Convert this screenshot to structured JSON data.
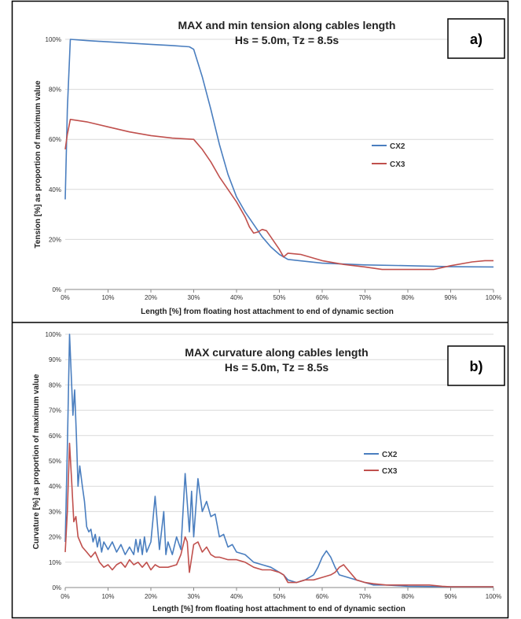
{
  "chart_data": [
    {
      "panel_label": "a)",
      "type": "line",
      "title": "MAX and min tension along cables length",
      "subtitle": "Hs = 5.0m, Tz = 8.5s",
      "xlabel": "Length [%] from floating host attachment to end of dynamic section",
      "ylabel": "Tension [%] as proportion of maximum value",
      "xlim": [
        0,
        100
      ],
      "ylim": [
        0,
        100
      ],
      "xticks": [
        "0%",
        "10%",
        "20%",
        "30%",
        "40%",
        "50%",
        "60%",
        "70%",
        "80%",
        "90%",
        "100%"
      ],
      "yticks": [
        "0%",
        "20%",
        "40%",
        "60%",
        "80%",
        "100%"
      ],
      "grid": true,
      "legend_position": "right",
      "series": [
        {
          "name": "CX2",
          "color": "#4a7ebf",
          "points": [
            [
              0,
              36
            ],
            [
              0.5,
              72
            ],
            [
              1.2,
              100
            ],
            [
              5,
              99.5
            ],
            [
              10,
              99
            ],
            [
              15,
              98.5
            ],
            [
              20,
              98
            ],
            [
              25,
              97.5
            ],
            [
              29,
              97
            ],
            [
              30,
              96
            ],
            [
              32,
              85
            ],
            [
              34,
              72
            ],
            [
              36,
              58
            ],
            [
              38,
              46
            ],
            [
              40,
              37
            ],
            [
              42,
              31
            ],
            [
              44,
              26
            ],
            [
              46,
              21
            ],
            [
              48,
              17
            ],
            [
              50,
              14
            ],
            [
              52,
              12
            ],
            [
              60,
              10.5
            ],
            [
              70,
              9.8
            ],
            [
              80,
              9.5
            ],
            [
              90,
              9.1
            ],
            [
              100,
              9
            ]
          ]
        },
        {
          "name": "CX3",
          "color": "#c0504d",
          "points": [
            [
              0,
              56
            ],
            [
              0.5,
              62
            ],
            [
              1.2,
              68
            ],
            [
              5,
              67
            ],
            [
              10,
              65
            ],
            [
              15,
              63
            ],
            [
              20,
              61.5
            ],
            [
              25,
              60.5
            ],
            [
              30,
              60
            ],
            [
              32,
              56
            ],
            [
              34,
              51
            ],
            [
              36,
              45
            ],
            [
              38,
              40
            ],
            [
              40,
              35
            ],
            [
              42,
              29
            ],
            [
              43,
              25
            ],
            [
              44,
              22.5
            ],
            [
              45,
              23
            ],
            [
              46,
              24
            ],
            [
              47,
              23.5
            ],
            [
              48,
              21
            ],
            [
              50,
              16
            ],
            [
              51,
              13
            ],
            [
              52,
              14.5
            ],
            [
              55,
              14
            ],
            [
              60,
              11.5
            ],
            [
              65,
              10
            ],
            [
              70,
              9
            ],
            [
              74,
              8
            ],
            [
              80,
              8
            ],
            [
              86,
              8
            ],
            [
              90,
              9.5
            ],
            [
              95,
              11
            ],
            [
              98,
              11.5
            ],
            [
              100,
              11.5
            ]
          ]
        }
      ]
    },
    {
      "panel_label": "b)",
      "type": "line",
      "title": "MAX curvature along cables length",
      "subtitle": "Hs = 5.0m, Tz = 8.5s",
      "xlabel": "Length [%] from floating host attachment to end of dynamic section",
      "ylabel": "Curvature [%] as proportion of maximum value",
      "xlim": [
        0,
        100
      ],
      "ylim": [
        0,
        100
      ],
      "xticks": [
        "0%",
        "10%",
        "20%",
        "30%",
        "40%",
        "50%",
        "60%",
        "70%",
        "80%",
        "90%",
        "100%"
      ],
      "yticks": [
        "0%",
        "10%",
        "20%",
        "30%",
        "40%",
        "50%",
        "60%",
        "70%",
        "80%",
        "90%",
        "100%"
      ],
      "grid": true,
      "legend_position": "right",
      "series": [
        {
          "name": "CX2",
          "color": "#4a7ebf",
          "points": [
            [
              0,
              18
            ],
            [
              0.5,
              55
            ],
            [
              1,
              100
            ],
            [
              1.5,
              80
            ],
            [
              1.8,
              68
            ],
            [
              2.2,
              78
            ],
            [
              2.6,
              60
            ],
            [
              3,
              40
            ],
            [
              3.4,
              48
            ],
            [
              4,
              40
            ],
            [
              4.5,
              34
            ],
            [
              5,
              24
            ],
            [
              5.5,
              22
            ],
            [
              6,
              23
            ],
            [
              6.5,
              18
            ],
            [
              7,
              21
            ],
            [
              7.5,
              16
            ],
            [
              8,
              20
            ],
            [
              8.5,
              14
            ],
            [
              9,
              18
            ],
            [
              10,
              15
            ],
            [
              11,
              18
            ],
            [
              12,
              14
            ],
            [
              13,
              17
            ],
            [
              14,
              13
            ],
            [
              15,
              16
            ],
            [
              16,
              13
            ],
            [
              16.5,
              19
            ],
            [
              17,
              14
            ],
            [
              17.5,
              19
            ],
            [
              18,
              13
            ],
            [
              18.5,
              20
            ],
            [
              19,
              14
            ],
            [
              20,
              18
            ],
            [
              21,
              36
            ],
            [
              22,
              15
            ],
            [
              23,
              30
            ],
            [
              23.5,
              13
            ],
            [
              24,
              18
            ],
            [
              25,
              13
            ],
            [
              26,
              20
            ],
            [
              27,
              15
            ],
            [
              28,
              45
            ],
            [
              29,
              22
            ],
            [
              29.5,
              38
            ],
            [
              30,
              20
            ],
            [
              31,
              43
            ],
            [
              32,
              30
            ],
            [
              33,
              34
            ],
            [
              34,
              28
            ],
            [
              35,
              29
            ],
            [
              36,
              20
            ],
            [
              37,
              21
            ],
            [
              38,
              16
            ],
            [
              39,
              17
            ],
            [
              40,
              14
            ],
            [
              42,
              13
            ],
            [
              44,
              10
            ],
            [
              46,
              9
            ],
            [
              48,
              8
            ],
            [
              50,
              6
            ],
            [
              51,
              5
            ],
            [
              52,
              3
            ],
            [
              54,
              2
            ],
            [
              56,
              3
            ],
            [
              58,
              5
            ],
            [
              59,
              8
            ],
            [
              60,
              12
            ],
            [
              61,
              14.5
            ],
            [
              62,
              12
            ],
            [
              63,
              8
            ],
            [
              64,
              5
            ],
            [
              66,
              4
            ],
            [
              70,
              2
            ],
            [
              72,
              1
            ],
            [
              75,
              1
            ],
            [
              80,
              0.5
            ],
            [
              90,
              0.3
            ],
            [
              100,
              0.3
            ]
          ]
        },
        {
          "name": "CX3",
          "color": "#c0504d",
          "points": [
            [
              0,
              14
            ],
            [
              0.5,
              30
            ],
            [
              1,
              57
            ],
            [
              1.5,
              42
            ],
            [
              2,
              26
            ],
            [
              2.5,
              28
            ],
            [
              3,
              20
            ],
            [
              4,
              16
            ],
            [
              5,
              14
            ],
            [
              6,
              12
            ],
            [
              7,
              14
            ],
            [
              8,
              10
            ],
            [
              9,
              8
            ],
            [
              10,
              9
            ],
            [
              11,
              7
            ],
            [
              12,
              9
            ],
            [
              13,
              10
            ],
            [
              14,
              8
            ],
            [
              15,
              11
            ],
            [
              16,
              9
            ],
            [
              17,
              10
            ],
            [
              18,
              8
            ],
            [
              19,
              10
            ],
            [
              20,
              7
            ],
            [
              21,
              9
            ],
            [
              22,
              8
            ],
            [
              24,
              8
            ],
            [
              26,
              9
            ],
            [
              27,
              13
            ],
            [
              28,
              20
            ],
            [
              28.5,
              18
            ],
            [
              29,
              6
            ],
            [
              30,
              17
            ],
            [
              31,
              18
            ],
            [
              32,
              14
            ],
            [
              33,
              16
            ],
            [
              34,
              13
            ],
            [
              35,
              12
            ],
            [
              36,
              12
            ],
            [
              38,
              11
            ],
            [
              40,
              11
            ],
            [
              42,
              10
            ],
            [
              44,
              8
            ],
            [
              46,
              7
            ],
            [
              48,
              7
            ],
            [
              50,
              6
            ],
            [
              51,
              5
            ],
            [
              52,
              2
            ],
            [
              54,
              2
            ],
            [
              56,
              3
            ],
            [
              58,
              3
            ],
            [
              60,
              4
            ],
            [
              62,
              5
            ],
            [
              63,
              6
            ],
            [
              64,
              8
            ],
            [
              65,
              9
            ],
            [
              66,
              7
            ],
            [
              68,
              3
            ],
            [
              70,
              2
            ],
            [
              72,
              1.5
            ],
            [
              75,
              1
            ],
            [
              80,
              1
            ],
            [
              85,
              1
            ],
            [
              88,
              0.5
            ],
            [
              90,
              0.3
            ],
            [
              100,
              0.3
            ]
          ]
        }
      ]
    }
  ]
}
